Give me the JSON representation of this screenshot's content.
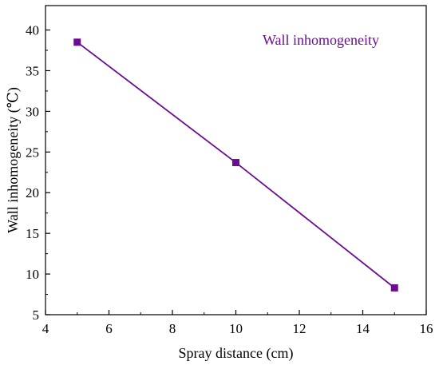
{
  "chart_data": {
    "type": "line",
    "title": "",
    "xlabel": "Spray distance (cm)",
    "ylabel": "Wall inhomogeneity (℃)",
    "xlim": [
      4,
      16
    ],
    "ylim": [
      5,
      43
    ],
    "x_ticks": [
      4,
      6,
      8,
      10,
      12,
      14,
      16
    ],
    "y_ticks": [
      5,
      10,
      15,
      20,
      25,
      30,
      35,
      40
    ],
    "grid": false,
    "legend_position": "top-right",
    "series": [
      {
        "name": "Wall inhomogeneity",
        "color": "#6a0d91",
        "marker": "square",
        "x": [
          5,
          10,
          15
        ],
        "y": [
          38.5,
          23.7,
          8.3
        ]
      }
    ]
  }
}
